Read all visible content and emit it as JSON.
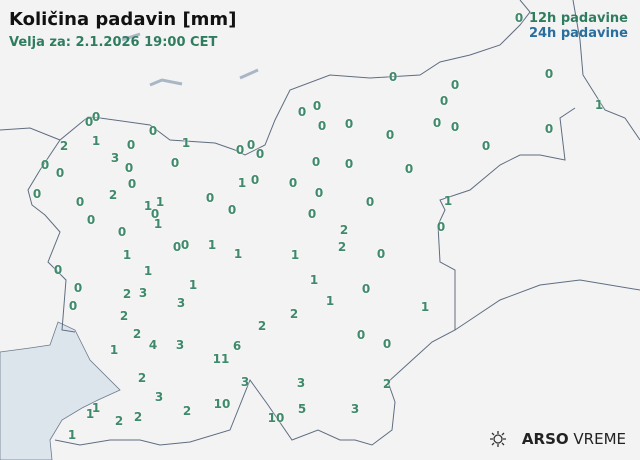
{
  "header": {
    "title": "Količina padavin [mm]",
    "valid": "Velja za: 2.1.2026 19:00 CET"
  },
  "legend": {
    "item_12h": "12h padavine",
    "item_24h": "24h padavine",
    "color_12h": "#2f7d5e",
    "color_24h": "#2a6e9e"
  },
  "stations_12h_mm": [
    "0",
    "0",
    "0",
    "2",
    "1",
    "0",
    "0",
    "1",
    "0",
    "0",
    "0",
    "0",
    "0",
    "3",
    "0",
    "0",
    "0",
    "0",
    "2",
    "0",
    "0",
    "1",
    "1",
    "0",
    "1",
    "0",
    "0",
    "0",
    "1",
    "1",
    "0",
    "0",
    "0",
    "1",
    "1",
    "1",
    "0",
    "0",
    "0",
    "2",
    "3",
    "1",
    "3",
    "2",
    "2",
    "4",
    "3",
    "1",
    "2",
    "6",
    "11",
    "2",
    "3",
    "2",
    "10",
    "3",
    "10",
    "5",
    "3",
    "3",
    "2",
    "1",
    "1",
    "2",
    "2",
    "1",
    "0",
    "0",
    "0",
    "0",
    "0",
    "0",
    "0",
    "0",
    "0",
    "0",
    "0",
    "0",
    "1",
    "0",
    "0",
    "0",
    "0",
    "0",
    "0",
    "0",
    "0",
    "1",
    "0",
    "2",
    "2",
    "0",
    "1",
    "1",
    "0",
    "1",
    "2",
    "1",
    "0",
    "0"
  ],
  "logo": {
    "brand_bold": "ARSO",
    "brand_light": "VREME",
    "icon": "sun-cloud-icon"
  }
}
